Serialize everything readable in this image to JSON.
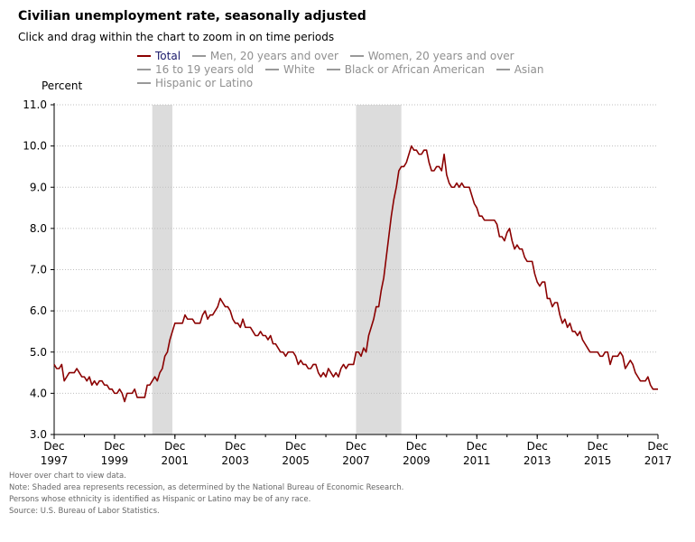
{
  "header": {
    "title": "Civilian unemployment rate, seasonally adjusted",
    "subtitle": "Click and drag within the chart to zoom in on time periods"
  },
  "legend": [
    {
      "label": "Total",
      "color": "#8b0000",
      "active": true
    },
    {
      "label": "Men, 20 years and over",
      "color": "#999999",
      "active": false
    },
    {
      "label": "Women, 20 years and over",
      "color": "#999999",
      "active": false
    },
    {
      "label": "16 to 19 years old",
      "color": "#999999",
      "active": false
    },
    {
      "label": "White",
      "color": "#999999",
      "active": false
    },
    {
      "label": "Black or African American",
      "color": "#999999",
      "active": false
    },
    {
      "label": "Asian",
      "color": "#999999",
      "active": false
    },
    {
      "label": "Hispanic or Latino",
      "color": "#999999",
      "active": false
    }
  ],
  "notes": [
    "Hover over chart to view data.",
    "Note: Shaded area represents recession, as determined by the National Bureau of Economic Research.",
    "Persons whose ethnicity is identified as Hispanic or Latino may be of any race.",
    "Source: U.S. Bureau of Labor Statistics."
  ],
  "chart_data": {
    "type": "line",
    "title": "Civilian unemployment rate, seasonally adjusted",
    "ylabel": "Percent",
    "xlabel": "",
    "ylim": [
      3.0,
      11.0
    ],
    "yticks": [
      "3.0",
      "4.0",
      "5.0",
      "6.0",
      "7.0",
      "8.0",
      "9.0",
      "10.0",
      "11.0"
    ],
    "xlim": [
      "1997-12",
      "2017-12"
    ],
    "xticks": [
      {
        "date": "1997-12",
        "label": [
          "Dec",
          "1997"
        ]
      },
      {
        "date": "1999-12",
        "label": [
          "Dec",
          "1999"
        ]
      },
      {
        "date": "2001-12",
        "label": [
          "Dec",
          "2001"
        ]
      },
      {
        "date": "2003-12",
        "label": [
          "Dec",
          "2003"
        ]
      },
      {
        "date": "2005-12",
        "label": [
          "Dec",
          "2005"
        ]
      },
      {
        "date": "2007-12",
        "label": [
          "Dec",
          "2007"
        ]
      },
      {
        "date": "2009-12",
        "label": [
          "Dec",
          "2009"
        ]
      },
      {
        "date": "2011-12",
        "label": [
          "Dec",
          "2011"
        ]
      },
      {
        "date": "2013-12",
        "label": [
          "Dec",
          "2013"
        ]
      },
      {
        "date": "2015-12",
        "label": [
          "Dec",
          "2015"
        ]
      },
      {
        "date": "2017-12",
        "label": [
          "Dec",
          "2017"
        ]
      }
    ],
    "grid": true,
    "recessions": [
      {
        "start": "2001-03",
        "end": "2001-11"
      },
      {
        "start": "2007-12",
        "end": "2009-06"
      }
    ],
    "series": [
      {
        "name": "Total",
        "color": "#8b0000",
        "start": "1997-12",
        "frequency": "monthly",
        "values": [
          4.7,
          4.6,
          4.6,
          4.7,
          4.3,
          4.4,
          4.5,
          4.5,
          4.5,
          4.6,
          4.5,
          4.4,
          4.4,
          4.3,
          4.4,
          4.2,
          4.3,
          4.2,
          4.3,
          4.3,
          4.2,
          4.2,
          4.1,
          4.1,
          4.0,
          4.0,
          4.1,
          4.0,
          3.8,
          4.0,
          4.0,
          4.0,
          4.1,
          3.9,
          3.9,
          3.9,
          3.9,
          4.2,
          4.2,
          4.3,
          4.4,
          4.3,
          4.5,
          4.6,
          4.9,
          5.0,
          5.3,
          5.5,
          5.7,
          5.7,
          5.7,
          5.7,
          5.9,
          5.8,
          5.8,
          5.8,
          5.7,
          5.7,
          5.7,
          5.9,
          6.0,
          5.8,
          5.9,
          5.9,
          6.0,
          6.1,
          6.3,
          6.2,
          6.1,
          6.1,
          6.0,
          5.8,
          5.7,
          5.7,
          5.6,
          5.8,
          5.6,
          5.6,
          5.6,
          5.5,
          5.4,
          5.4,
          5.5,
          5.4,
          5.4,
          5.3,
          5.4,
          5.2,
          5.2,
          5.1,
          5.0,
          5.0,
          4.9,
          5.0,
          5.0,
          5.0,
          4.9,
          4.7,
          4.8,
          4.7,
          4.7,
          4.6,
          4.6,
          4.7,
          4.7,
          4.5,
          4.4,
          4.5,
          4.4,
          4.6,
          4.5,
          4.4,
          4.5,
          4.4,
          4.6,
          4.7,
          4.6,
          4.7,
          4.7,
          4.7,
          5.0,
          5.0,
          4.9,
          5.1,
          5.0,
          5.4,
          5.6,
          5.8,
          6.1,
          6.1,
          6.5,
          6.8,
          7.3,
          7.8,
          8.3,
          8.7,
          9.0,
          9.4,
          9.5,
          9.5,
          9.6,
          9.8,
          10.0,
          9.9,
          9.9,
          9.8,
          9.8,
          9.9,
          9.9,
          9.6,
          9.4,
          9.4,
          9.5,
          9.5,
          9.4,
          9.8,
          9.3,
          9.1,
          9.0,
          9.0,
          9.1,
          9.0,
          9.1,
          9.0,
          9.0,
          9.0,
          8.8,
          8.6,
          8.5,
          8.3,
          8.3,
          8.2,
          8.2,
          8.2,
          8.2,
          8.2,
          8.1,
          7.8,
          7.8,
          7.7,
          7.9,
          8.0,
          7.7,
          7.5,
          7.6,
          7.5,
          7.5,
          7.3,
          7.2,
          7.2,
          7.2,
          6.9,
          6.7,
          6.6,
          6.7,
          6.7,
          6.3,
          6.3,
          6.1,
          6.2,
          6.2,
          5.9,
          5.7,
          5.8,
          5.6,
          5.7,
          5.5,
          5.5,
          5.4,
          5.5,
          5.3,
          5.2,
          5.1,
          5.0,
          5.0,
          5.0,
          5.0,
          4.9,
          4.9,
          5.0,
          5.0,
          4.7,
          4.9,
          4.9,
          4.9,
          5.0,
          4.9,
          4.6,
          4.7,
          4.8,
          4.7,
          4.5,
          4.4,
          4.3,
          4.3,
          4.3,
          4.4,
          4.2,
          4.1,
          4.1,
          4.1
        ]
      }
    ]
  }
}
